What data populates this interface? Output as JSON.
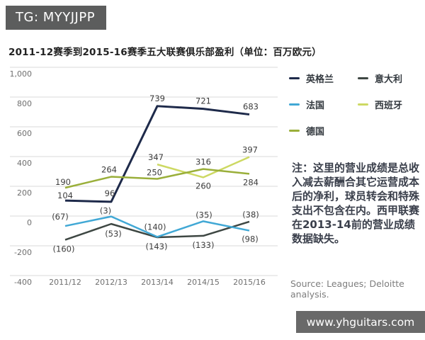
{
  "badge": {
    "text": "TG: MYYJJPP"
  },
  "title": "2011-12赛季到2015-16赛季五大联赛俱乐部盈利（单位：百万欧元）",
  "chart_data": {
    "type": "line",
    "title": "2011-12赛季到2015-16赛季五大联赛俱乐部盈利（单位：百万欧元）",
    "xlabel": "",
    "ylabel": "",
    "ylim": [
      -400,
      1000
    ],
    "grid": true,
    "legend_position": "right",
    "x_categories": [
      "2011/12",
      "2012/13",
      "2013/14",
      "2014/15",
      "2015/16"
    ],
    "y_ticks": [
      1000,
      800,
      600,
      400,
      200,
      0,
      -200,
      -400
    ],
    "y_tick_labels": [
      "1,000",
      "800",
      "600",
      "400",
      "200",
      "0",
      "-200",
      "-400"
    ],
    "series": [
      {
        "id": "england",
        "name": "英格兰",
        "color": "#1e2a4a",
        "values": [
          104,
          96,
          739,
          721,
          683
        ],
        "labels": [
          "104",
          "96",
          "739",
          "721",
          "683"
        ],
        "label_offsets": [
          [
            0,
            -3
          ],
          [
            -2,
            -8
          ],
          [
            0,
            -7
          ],
          [
            0,
            -7
          ],
          [
            2,
            -7
          ]
        ]
      },
      {
        "id": "italy",
        "name": "意大利",
        "color": "#3e4743",
        "values": [
          -160,
          -53,
          -143,
          -133,
          -38
        ],
        "labels": [
          "(160)",
          "(53)",
          "(143)",
          "(133)",
          "(38)"
        ],
        "label_offsets": [
          [
            -2,
            17
          ],
          [
            3,
            18
          ],
          [
            -1,
            17
          ],
          [
            0,
            17
          ],
          [
            2,
            -6
          ]
        ]
      },
      {
        "id": "france",
        "name": "法国",
        "color": "#41a8d5",
        "values": [
          -67,
          -3,
          -140,
          -35,
          -98
        ],
        "labels": [
          "(67)",
          "(3)",
          "(140)",
          "(35)",
          "(98)"
        ],
        "label_offsets": [
          [
            -7,
            -9
          ],
          [
            -8,
            -4
          ],
          [
            -3,
            -10
          ],
          [
            1,
            -5
          ],
          [
            1,
            16
          ]
        ]
      },
      {
        "id": "spain",
        "name": "西班牙",
        "color": "#cdd963",
        "values": [
          null,
          null,
          347,
          260,
          397
        ],
        "labels": [
          null,
          null,
          "347",
          "260",
          "397"
        ],
        "label_offsets": [
          null,
          null,
          [
            -2,
            -6
          ],
          [
            0,
            16
          ],
          [
            1,
            -6
          ]
        ]
      },
      {
        "id": "germany",
        "name": "德国",
        "color": "#9aaf3a",
        "values": [
          190,
          264,
          250,
          316,
          284
        ],
        "labels": [
          "190",
          "264",
          "250",
          "316",
          "284"
        ],
        "label_offsets": [
          [
            -3,
            -4
          ],
          [
            -3,
            -6
          ],
          [
            -4,
            -5
          ],
          [
            0,
            -6
          ],
          [
            2,
            16
          ]
        ]
      }
    ],
    "legend_order": [
      "england",
      "italy",
      "france",
      "spain",
      "germany"
    ]
  },
  "note": "注：这里的营业成绩是总收入减去薪酬合其它运营成本后的净利，球员转会和特殊支出不包含在内。西甲联赛在2013-14前的营业成绩数据缺失。",
  "source": "Source: Leagues; Deloitte analysis.",
  "watermark": "www.yhguitars.com"
}
